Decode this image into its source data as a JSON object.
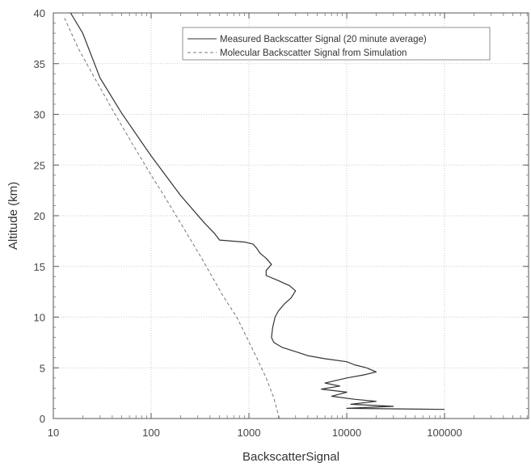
{
  "chart_data": {
    "type": "line",
    "xlabel": "BackscatterSignal",
    "ylabel": "Altitude (km)",
    "x_scale": "log",
    "xlim": [
      10,
      600000
    ],
    "ylim": [
      0,
      40
    ],
    "x_ticks": [
      10,
      100,
      1000,
      10000,
      100000
    ],
    "x_tick_labels": [
      "10",
      "100",
      "1000",
      "10000",
      "100000"
    ],
    "y_ticks": [
      0,
      5,
      10,
      15,
      20,
      25,
      30,
      35,
      40
    ],
    "y_tick_labels": [
      "0",
      "5",
      "10",
      "15",
      "20",
      "25",
      "30",
      "35",
      "40"
    ],
    "grid": true,
    "legend_position": "top-right",
    "series": [
      {
        "name": "Measured Backscatter Signal (20 minute average)",
        "style": "solid",
        "color": "#333333",
        "points": [
          [
            100000,
            0.9
          ],
          [
            10000,
            1.0
          ],
          [
            30000,
            1.2
          ],
          [
            11000,
            1.4
          ],
          [
            20000,
            1.7
          ],
          [
            12000,
            1.9
          ],
          [
            7000,
            2.2
          ],
          [
            10000,
            2.6
          ],
          [
            5500,
            2.9
          ],
          [
            8500,
            3.2
          ],
          [
            6000,
            3.5
          ],
          [
            10000,
            4.0
          ],
          [
            15000,
            4.3
          ],
          [
            20000,
            4.6
          ],
          [
            16000,
            5.0
          ],
          [
            12000,
            5.3
          ],
          [
            10000,
            5.6
          ],
          [
            6000,
            5.9
          ],
          [
            4000,
            6.2
          ],
          [
            3000,
            6.6
          ],
          [
            2200,
            7.0
          ],
          [
            1800,
            7.5
          ],
          [
            1700,
            8.0
          ],
          [
            1750,
            9.0
          ],
          [
            1850,
            10.0
          ],
          [
            2000,
            10.6
          ],
          [
            2300,
            11.3
          ],
          [
            2700,
            11.9
          ],
          [
            3000,
            12.6
          ],
          [
            2600,
            13.1
          ],
          [
            2000,
            13.6
          ],
          [
            1500,
            14.1
          ],
          [
            1500,
            14.6
          ],
          [
            1700,
            15.2
          ],
          [
            1500,
            15.8
          ],
          [
            1300,
            16.3
          ],
          [
            1200,
            16.8
          ],
          [
            1100,
            17.2
          ],
          [
            900,
            17.4
          ],
          [
            500,
            17.6
          ],
          [
            450,
            18.2
          ],
          [
            350,
            19.3
          ],
          [
            200,
            22.0
          ],
          [
            100,
            25.9
          ],
          [
            50,
            30.1
          ],
          [
            30,
            33.6
          ],
          [
            20,
            38.0
          ],
          [
            15,
            40.0
          ]
        ]
      },
      {
        "name": "Molecular Backscatter Signal from Simulation",
        "style": "dashed",
        "color": "#777777",
        "points": [
          [
            2050,
            0.0
          ],
          [
            1800,
            2.0
          ],
          [
            1500,
            4.0
          ],
          [
            1200,
            6.0
          ],
          [
            950,
            8.0
          ],
          [
            750,
            10.0
          ],
          [
            550,
            12.0
          ],
          [
            420,
            14.0
          ],
          [
            320,
            16.0
          ],
          [
            240,
            18.0
          ],
          [
            180,
            20.0
          ],
          [
            135,
            22.0
          ],
          [
            100,
            24.0
          ],
          [
            65,
            27.0
          ],
          [
            40,
            30.5
          ],
          [
            25,
            34.0
          ],
          [
            18,
            36.5
          ],
          [
            13,
            39.5
          ]
        ]
      }
    ]
  }
}
